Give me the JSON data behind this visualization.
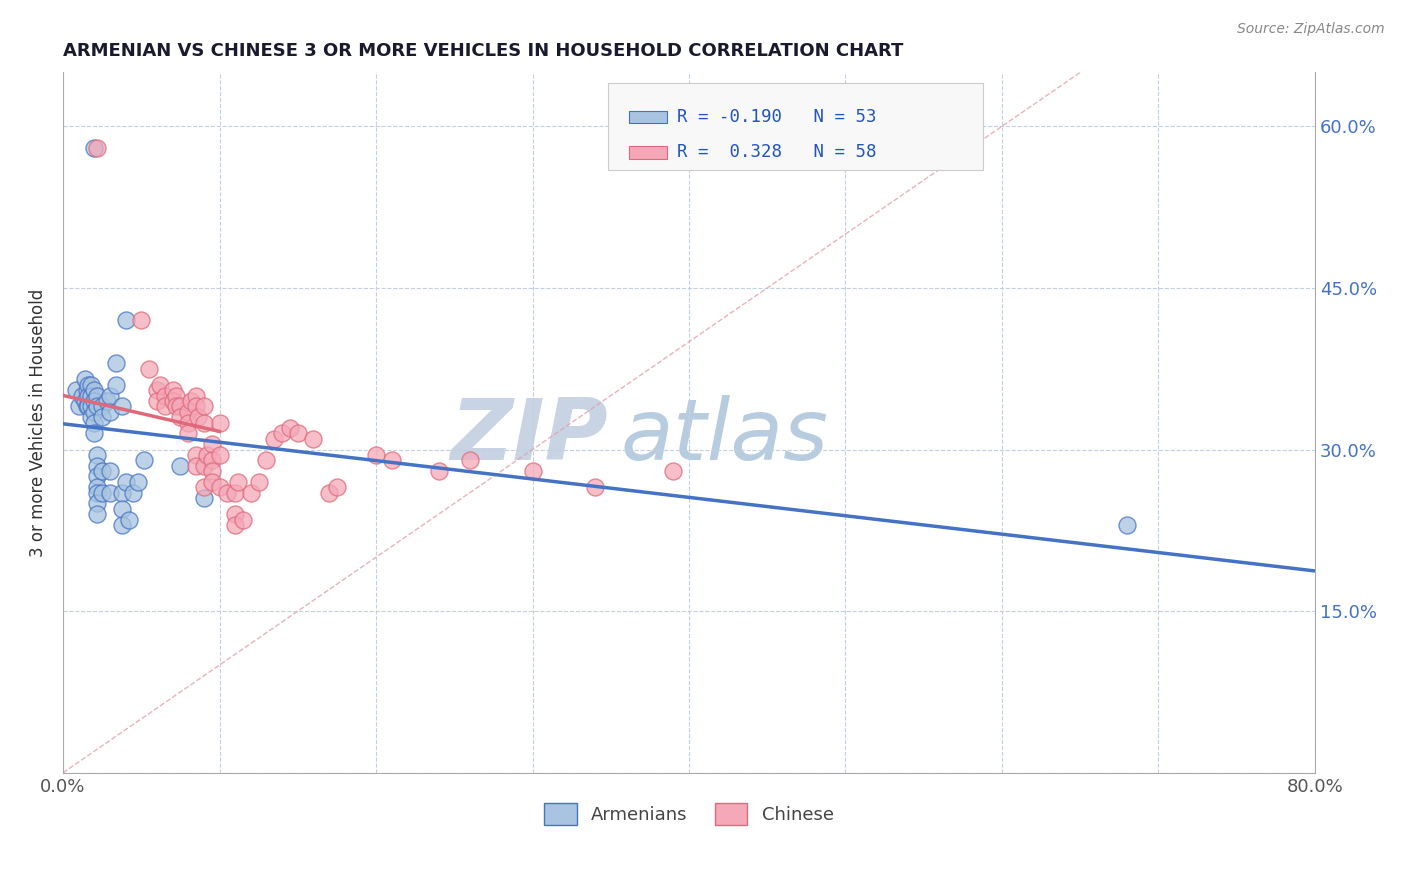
{
  "title": "ARMENIAN VS CHINESE 3 OR MORE VEHICLES IN HOUSEHOLD CORRELATION CHART",
  "source": "Source: ZipAtlas.com",
  "ylabel": "3 or more Vehicles in Household",
  "xlim": [
    0.0,
    0.8
  ],
  "ylim": [
    0.0,
    0.65
  ],
  "armenian_R": -0.19,
  "armenian_N": 53,
  "chinese_R": 0.328,
  "chinese_N": 58,
  "armenian_color": "#a8c4e0",
  "chinese_color": "#f4a8b8",
  "armenian_line_color": "#4472c4",
  "chinese_line_color": "#e06878",
  "diagonal_color": "#e0a0a8",
  "watermark_zip": "ZIP",
  "watermark_atlas": "atlas",
  "watermark_color_zip": "#c8d4e4",
  "watermark_color_atlas": "#b8cce0",
  "armenian_scatter": [
    [
      0.02,
      0.58
    ],
    [
      0.04,
      0.42
    ],
    [
      0.008,
      0.355
    ],
    [
      0.01,
      0.34
    ],
    [
      0.012,
      0.35
    ],
    [
      0.014,
      0.365
    ],
    [
      0.014,
      0.345
    ],
    [
      0.015,
      0.355
    ],
    [
      0.015,
      0.34
    ],
    [
      0.016,
      0.36
    ],
    [
      0.016,
      0.35
    ],
    [
      0.016,
      0.34
    ],
    [
      0.018,
      0.36
    ],
    [
      0.018,
      0.35
    ],
    [
      0.018,
      0.34
    ],
    [
      0.018,
      0.33
    ],
    [
      0.02,
      0.355
    ],
    [
      0.02,
      0.345
    ],
    [
      0.02,
      0.335
    ],
    [
      0.02,
      0.325
    ],
    [
      0.02,
      0.315
    ],
    [
      0.022,
      0.35
    ],
    [
      0.022,
      0.34
    ],
    [
      0.022,
      0.295
    ],
    [
      0.022,
      0.285
    ],
    [
      0.022,
      0.275
    ],
    [
      0.022,
      0.265
    ],
    [
      0.022,
      0.26
    ],
    [
      0.022,
      0.25
    ],
    [
      0.022,
      0.24
    ],
    [
      0.025,
      0.34
    ],
    [
      0.025,
      0.33
    ],
    [
      0.025,
      0.28
    ],
    [
      0.025,
      0.26
    ],
    [
      0.028,
      0.345
    ],
    [
      0.03,
      0.35
    ],
    [
      0.03,
      0.335
    ],
    [
      0.03,
      0.28
    ],
    [
      0.03,
      0.26
    ],
    [
      0.034,
      0.38
    ],
    [
      0.034,
      0.36
    ],
    [
      0.038,
      0.34
    ],
    [
      0.038,
      0.26
    ],
    [
      0.038,
      0.245
    ],
    [
      0.038,
      0.23
    ],
    [
      0.04,
      0.27
    ],
    [
      0.042,
      0.235
    ],
    [
      0.045,
      0.26
    ],
    [
      0.048,
      0.27
    ],
    [
      0.052,
      0.29
    ],
    [
      0.075,
      0.285
    ],
    [
      0.09,
      0.255
    ],
    [
      0.68,
      0.23
    ]
  ],
  "chinese_scatter": [
    [
      0.022,
      0.58
    ],
    [
      0.05,
      0.42
    ],
    [
      0.055,
      0.375
    ],
    [
      0.06,
      0.355
    ],
    [
      0.06,
      0.345
    ],
    [
      0.062,
      0.36
    ],
    [
      0.065,
      0.35
    ],
    [
      0.065,
      0.34
    ],
    [
      0.07,
      0.355
    ],
    [
      0.07,
      0.345
    ],
    [
      0.072,
      0.35
    ],
    [
      0.072,
      0.34
    ],
    [
      0.075,
      0.34
    ],
    [
      0.075,
      0.33
    ],
    [
      0.08,
      0.335
    ],
    [
      0.08,
      0.325
    ],
    [
      0.08,
      0.315
    ],
    [
      0.082,
      0.345
    ],
    [
      0.085,
      0.35
    ],
    [
      0.085,
      0.34
    ],
    [
      0.085,
      0.295
    ],
    [
      0.085,
      0.285
    ],
    [
      0.086,
      0.33
    ],
    [
      0.09,
      0.34
    ],
    [
      0.09,
      0.325
    ],
    [
      0.09,
      0.285
    ],
    [
      0.09,
      0.265
    ],
    [
      0.092,
      0.295
    ],
    [
      0.095,
      0.305
    ],
    [
      0.095,
      0.29
    ],
    [
      0.095,
      0.28
    ],
    [
      0.095,
      0.27
    ],
    [
      0.1,
      0.325
    ],
    [
      0.1,
      0.295
    ],
    [
      0.1,
      0.265
    ],
    [
      0.105,
      0.26
    ],
    [
      0.11,
      0.26
    ],
    [
      0.11,
      0.24
    ],
    [
      0.11,
      0.23
    ],
    [
      0.112,
      0.27
    ],
    [
      0.115,
      0.235
    ],
    [
      0.12,
      0.26
    ],
    [
      0.125,
      0.27
    ],
    [
      0.13,
      0.29
    ],
    [
      0.135,
      0.31
    ],
    [
      0.14,
      0.315
    ],
    [
      0.145,
      0.32
    ],
    [
      0.15,
      0.315
    ],
    [
      0.16,
      0.31
    ],
    [
      0.17,
      0.26
    ],
    [
      0.175,
      0.265
    ],
    [
      0.2,
      0.295
    ],
    [
      0.21,
      0.29
    ],
    [
      0.24,
      0.28
    ],
    [
      0.26,
      0.29
    ],
    [
      0.3,
      0.28
    ],
    [
      0.34,
      0.265
    ],
    [
      0.39,
      0.28
    ]
  ]
}
